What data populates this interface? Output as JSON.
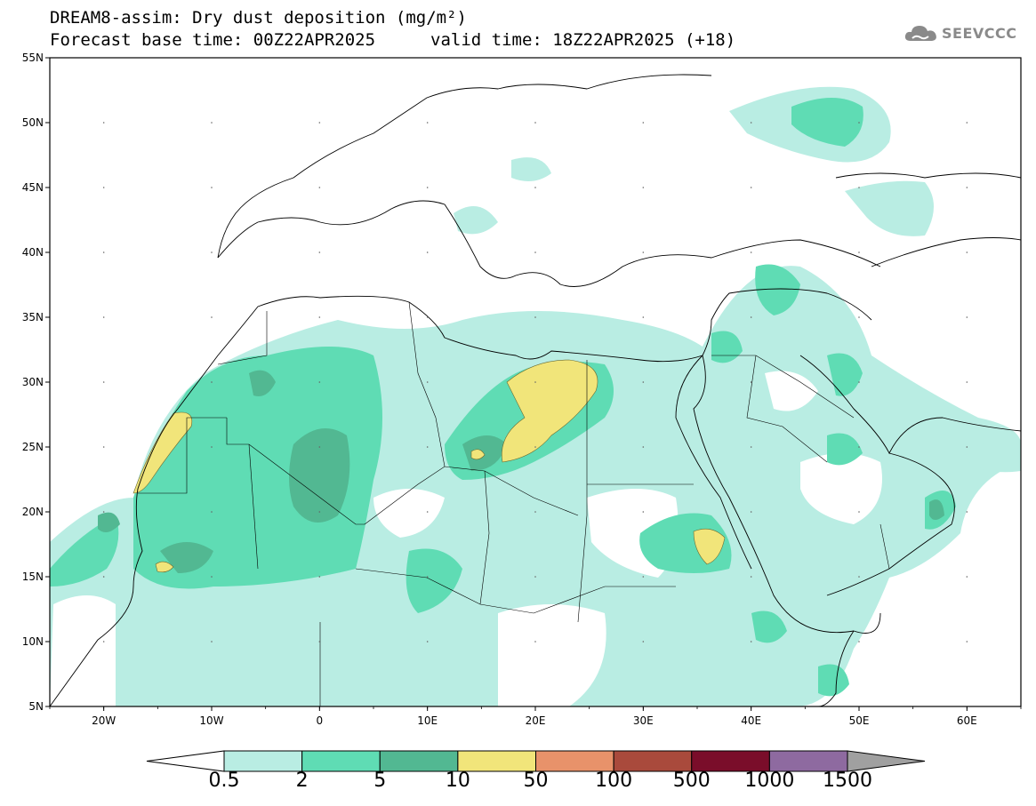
{
  "header": {
    "title": "DREAM8-assim: Dry dust deposition (mg/m²)",
    "base_time": "Forecast base time: 00Z22APR2025",
    "valid_time": "valid time: 18Z22APR2025 (+18)"
  },
  "logo": {
    "text": "SEEVCCC",
    "icon": "cloud-icon"
  },
  "map": {
    "lon_range": [
      -25,
      65
    ],
    "lat_range": [
      5,
      55
    ],
    "lat_ticks": [
      "55N",
      "50N",
      "45N",
      "40N",
      "35N",
      "30N",
      "25N",
      "20N",
      "15N",
      "10N",
      "5N"
    ],
    "lon_ticks": [
      "20W",
      "10W",
      "0",
      "10E",
      "20E",
      "30E",
      "40E",
      "50E",
      "60E"
    ]
  },
  "colorbar": {
    "labels": [
      "0.5",
      "2",
      "5",
      "10",
      "50",
      "100",
      "500",
      "1000",
      "1500"
    ],
    "colors": [
      "#b9ede3",
      "#5fdcb4",
      "#52b892",
      "#f1e57a",
      "#e8926a",
      "#a94a3c",
      "#7a0d2a",
      "#8e6aa0"
    ],
    "under_color": "#ffffff",
    "over_color": "#a0a0a0"
  }
}
